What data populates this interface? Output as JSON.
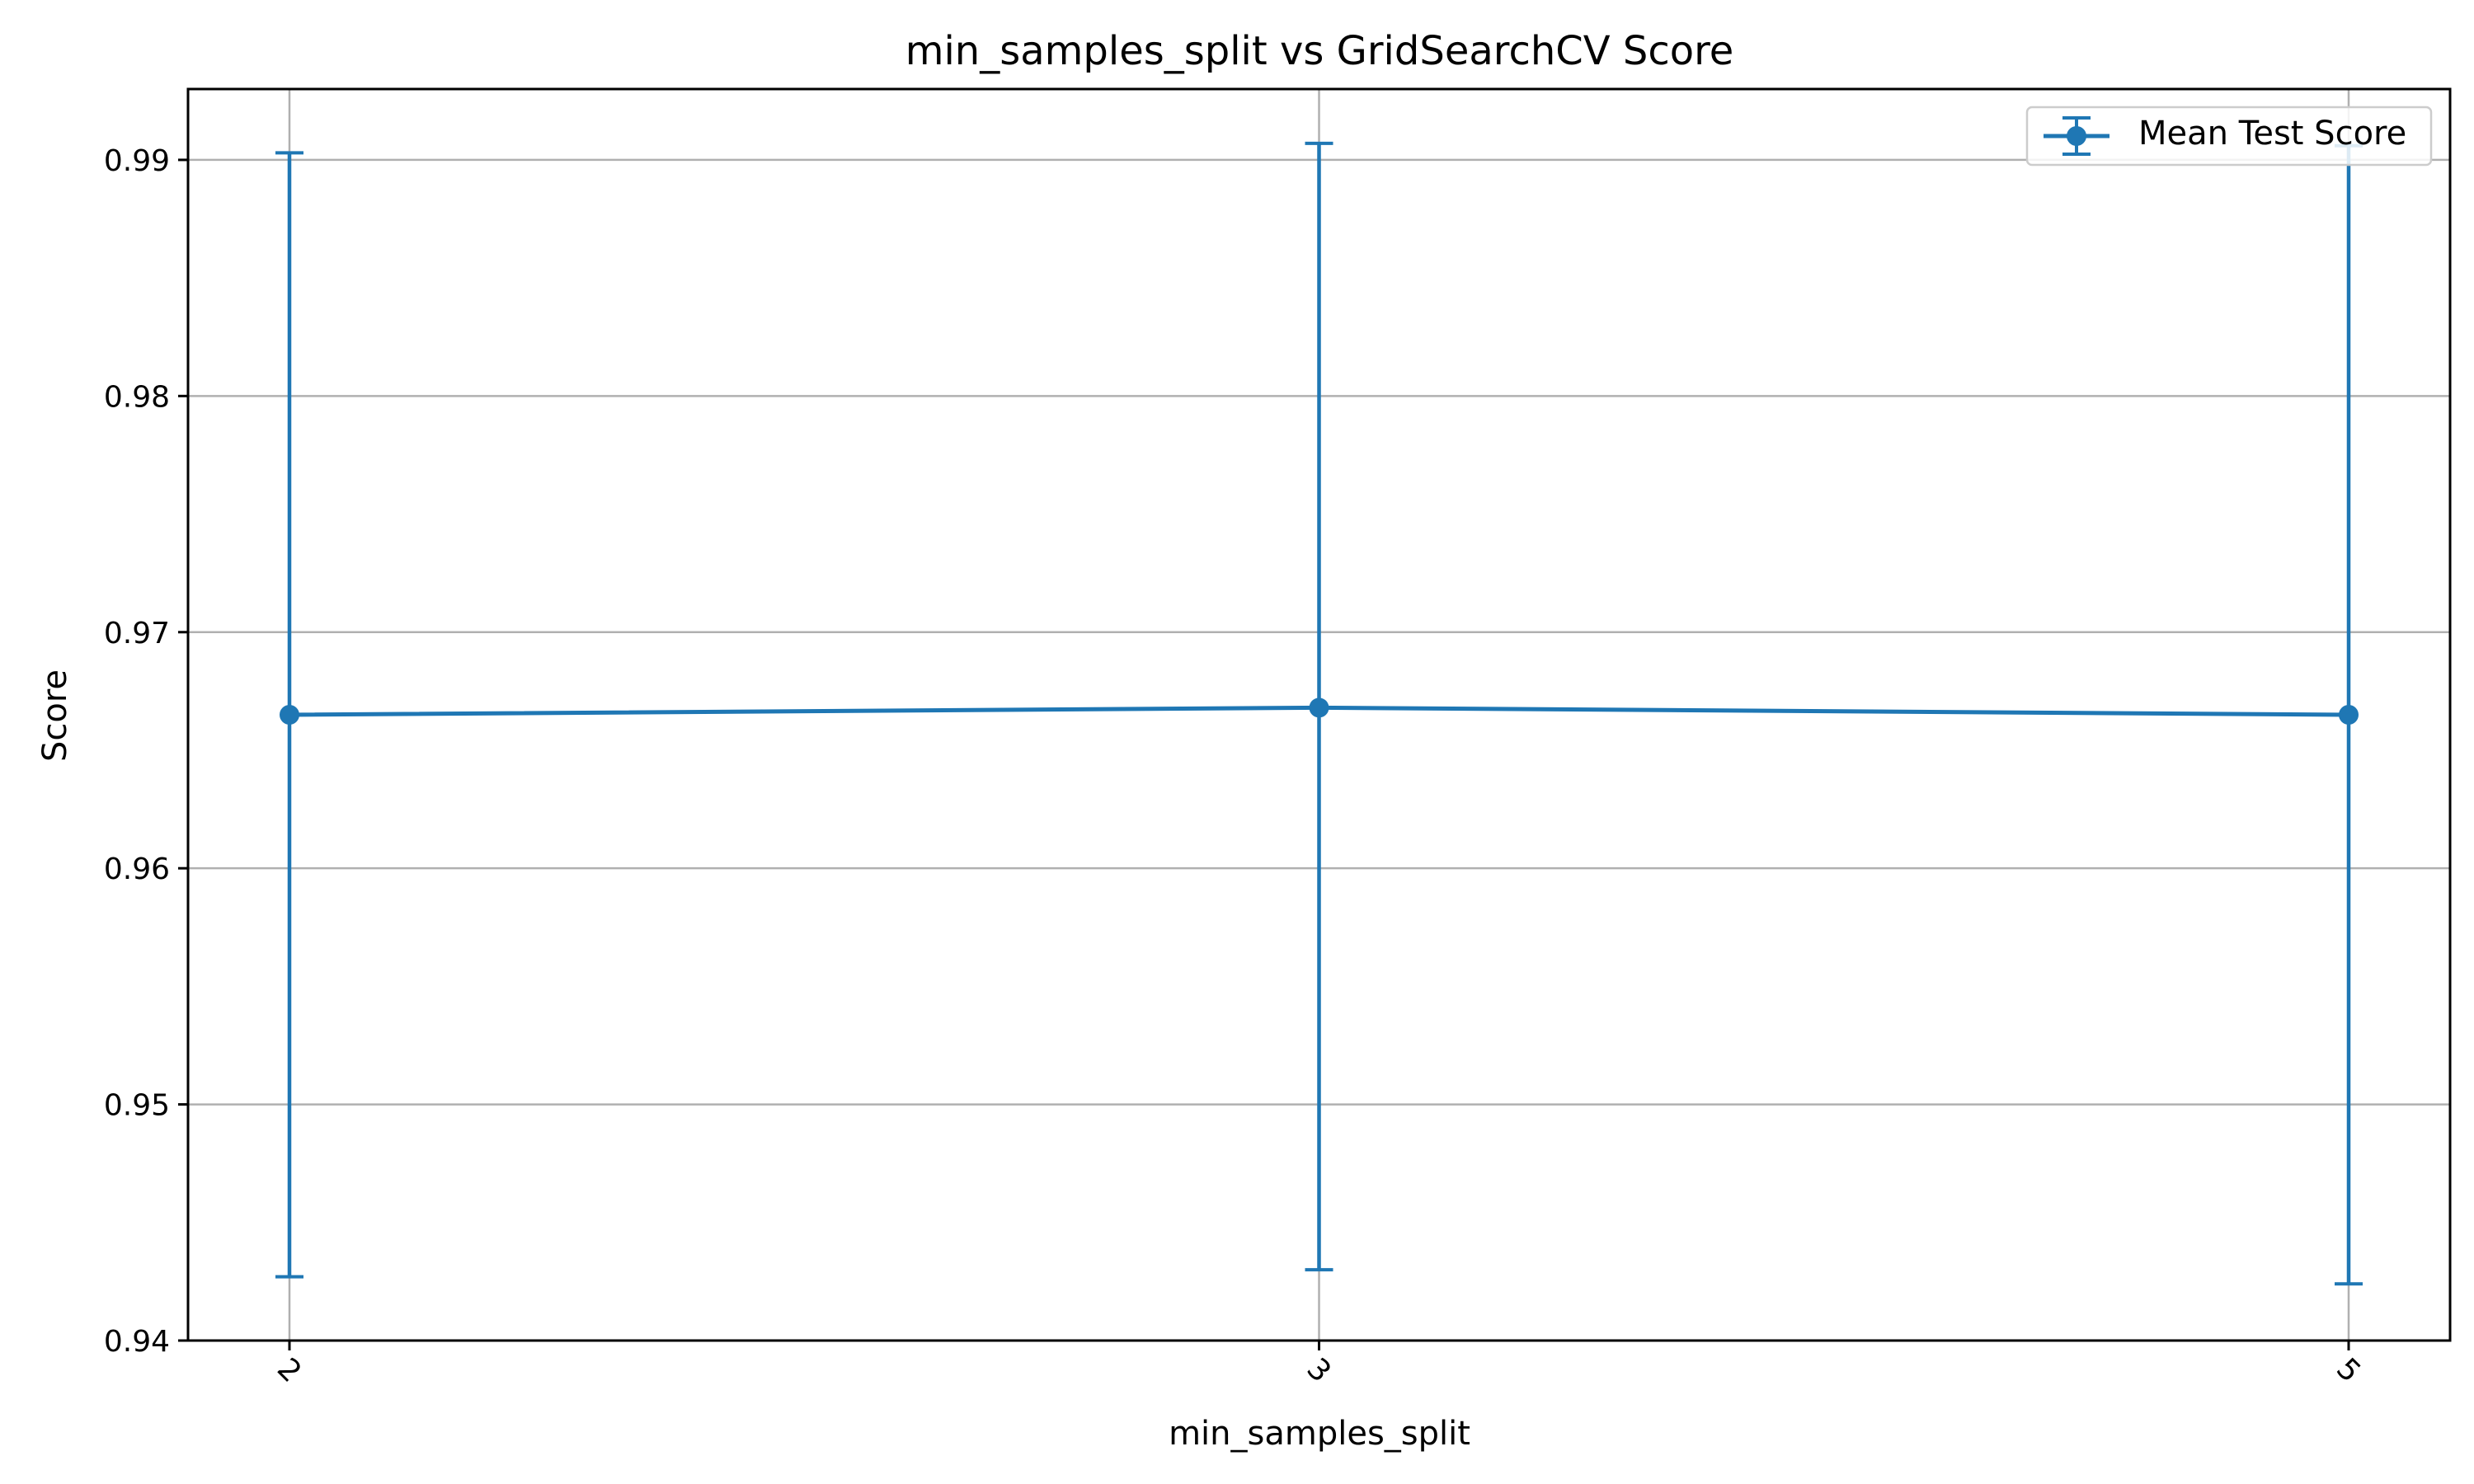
{
  "chart_data": {
    "type": "line",
    "title": "min_samples_split vs GridSearchCV Score",
    "xlabel": "min_samples_split",
    "ylabel": "Score",
    "categories": [
      "2",
      "3",
      "5"
    ],
    "ylim": [
      0.94,
      0.993
    ],
    "yticks": [
      "0.94",
      "0.95",
      "0.96",
      "0.97",
      "0.98",
      "0.99"
    ],
    "grid": true,
    "legend_position": "top-right",
    "series": [
      {
        "name": "Mean Test Score",
        "color": "#1f77b4",
        "marker": "circle",
        "values": [
          0.9665,
          0.9668,
          0.9665
        ],
        "error_lower": [
          0.9427,
          0.943,
          0.9424
        ],
        "error_upper": [
          0.9903,
          0.9907,
          0.9906
        ]
      }
    ]
  }
}
